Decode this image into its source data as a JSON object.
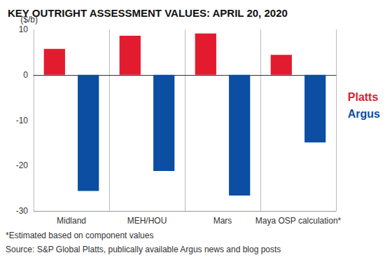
{
  "chart_data": {
    "type": "bar",
    "title": "KEY OUTRIGHT ASSESSMENT VALUES: APRIL 20, 2020",
    "y_label": "($/b)",
    "categories": [
      "Midland",
      "MEH/HOU",
      "Mars",
      "Maya OSP calculation*"
    ],
    "series": [
      {
        "name": "Platts",
        "color": "#e31b2e",
        "values": [
          5.7,
          8.6,
          9.1,
          4.4
        ]
      },
      {
        "name": "Argus",
        "color": "#0b4ea2",
        "values": [
          -25.6,
          -21.2,
          -26.6,
          -14.9
        ]
      }
    ],
    "ylim": [
      -30,
      10
    ],
    "yticks": [
      -30,
      -20,
      -10,
      0,
      10
    ],
    "grid": false,
    "legend": "right",
    "annotations": [
      "*Estimated based on component values",
      "Source: S&P Global Platts, publically available Argus news and blog posts"
    ]
  }
}
